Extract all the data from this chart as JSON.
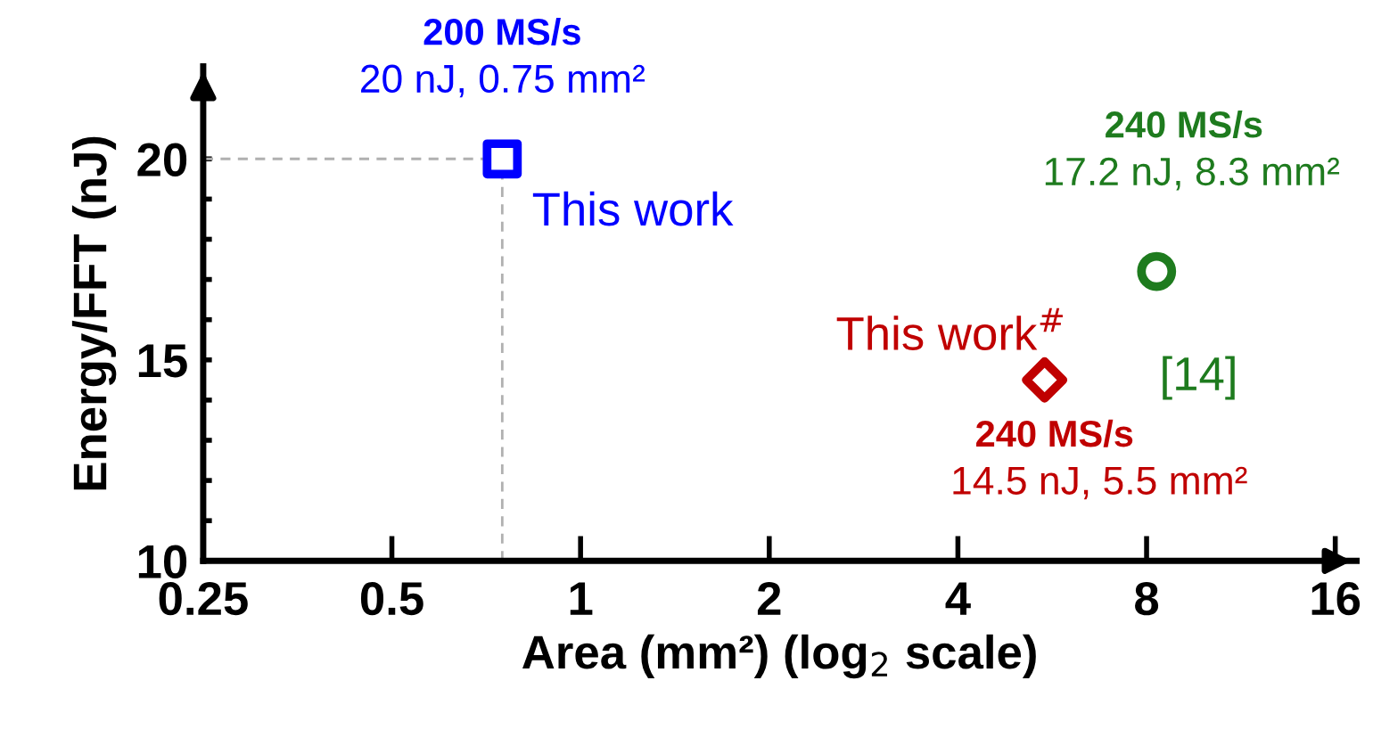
{
  "chart_data": {
    "type": "scatter",
    "xlabel": "Area (mm²) (log$_{2}$ scale)",
    "ylabel": "Energy/FFT (nJ)",
    "log": "x",
    "xlim": [
      0.25,
      17.3
    ],
    "xticks": [
      0.25,
      0.5,
      1,
      2,
      4,
      8,
      16
    ],
    "ylim": [
      10,
      22.3
    ],
    "yticks": [
      10,
      {
        "value": 11,
        "label": null
      },
      {
        "value": 12,
        "label": null
      },
      {
        "value": 13,
        "label": null
      },
      {
        "value": 14,
        "label": null
      },
      15,
      {
        "value": 16,
        "label": null
      },
      {
        "value": 17,
        "label": null
      },
      {
        "value": 18,
        "label": null
      },
      {
        "value": 19,
        "label": null
      },
      20
    ],
    "grid": false,
    "series": [
      {
        "name": "This work",
        "color": "#0000ff",
        "marker": "square",
        "x": [
          0.75
        ],
        "values": [
          20
        ]
      },
      {
        "name": "This work$^{#}$",
        "color": "#c00000",
        "marker": "diamond",
        "x": [
          5.5
        ],
        "values": [
          14.5
        ]
      },
      {
        "name": "[14]",
        "color": "#1e7b1e",
        "marker": "circle",
        "x": [
          8.3
        ],
        "values": [
          17.2
        ]
      }
    ],
    "ref_lines": [
      {
        "axis": "x",
        "value": 0.75,
        "color": "#b0b0b0",
        "line_style": "dashed"
      },
      {
        "axis": "y",
        "value": 20,
        "color": "#b0b0b0",
        "line_style": "dashed"
      }
    ],
    "annotations": [
      "200 MS/s",
      "20 nJ, 0.75 mm²",
      "240 MS/s",
      "14.5 nJ, 5.5 mm²",
      "240 MS/s",
      "17.2 nJ, 8.3 mm²"
    ]
  }
}
